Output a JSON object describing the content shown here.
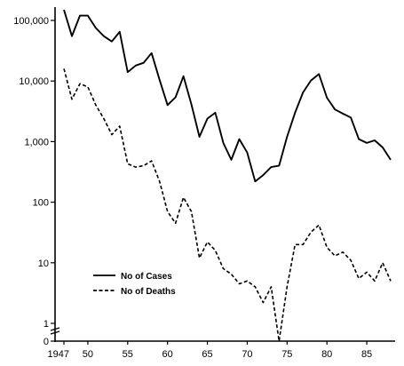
{
  "chart_data": {
    "type": "line",
    "title": "",
    "xlabel": "",
    "ylabel": "",
    "y_scale": "log",
    "ylim": [
      1,
      100000
    ],
    "xlim": [
      1947,
      1988
    ],
    "y_ticks": [
      {
        "value": 100000,
        "label": "100,000"
      },
      {
        "value": 10000,
        "label": "10,000"
      },
      {
        "value": 1000,
        "label": "1,000"
      },
      {
        "value": 100,
        "label": "100"
      },
      {
        "value": 10,
        "label": "10"
      },
      {
        "value": 1,
        "label": "1"
      }
    ],
    "y_zero_label": "0",
    "x_ticks": [
      {
        "value": 1947,
        "label": "1947"
      },
      {
        "value": 1950,
        "label": "50"
      },
      {
        "value": 1955,
        "label": "55"
      },
      {
        "value": 1960,
        "label": "60"
      },
      {
        "value": 1965,
        "label": "65"
      },
      {
        "value": 1970,
        "label": "70"
      },
      {
        "value": 1975,
        "label": "75"
      },
      {
        "value": 1980,
        "label": "80"
      },
      {
        "value": 1985,
        "label": "85"
      }
    ],
    "grid": false,
    "legend_position": "bottom-left",
    "series": [
      {
        "name": "No of Cases",
        "style": "solid",
        "x": [
          1947,
          1948,
          1949,
          1950,
          1951,
          1952,
          1953,
          1954,
          1955,
          1956,
          1957,
          1958,
          1959,
          1960,
          1961,
          1962,
          1963,
          1964,
          1965,
          1966,
          1967,
          1968,
          1969,
          1970,
          1971,
          1972,
          1973,
          1974,
          1975,
          1976,
          1977,
          1978,
          1979,
          1980,
          1981,
          1982,
          1983,
          1984,
          1985,
          1986,
          1987,
          1988
        ],
        "values": [
          150000,
          55000,
          120000,
          120000,
          75000,
          55000,
          45000,
          65000,
          14000,
          18000,
          20000,
          29000,
          10500,
          4000,
          5400,
          12000,
          4100,
          1200,
          2400,
          3000,
          950,
          500,
          1100,
          660,
          220,
          280,
          380,
          400,
          1200,
          3000,
          6500,
          10200,
          13000,
          5300,
          3400,
          2900,
          2500,
          1100,
          950,
          1050,
          800,
          500
        ]
      },
      {
        "name": "No of Deaths",
        "style": "dashed",
        "x": [
          1947,
          1948,
          1949,
          1950,
          1951,
          1952,
          1953,
          1954,
          1955,
          1956,
          1957,
          1958,
          1959,
          1960,
          1961,
          1962,
          1963,
          1964,
          1965,
          1966,
          1967,
          1968,
          1969,
          1970,
          1971,
          1972,
          1973,
          1974,
          1975,
          1976,
          1977,
          1978,
          1979,
          1980,
          1981,
          1982,
          1983,
          1984,
          1985,
          1986,
          1987,
          1988
        ],
        "values": [
          16000,
          5000,
          9000,
          8000,
          4000,
          2400,
          1300,
          1800,
          430,
          380,
          400,
          480,
          220,
          70,
          45,
          120,
          70,
          12,
          22,
          16,
          8,
          6.5,
          4.5,
          5,
          4,
          2.2,
          4,
          0,
          4,
          20,
          20,
          32,
          42,
          18,
          13,
          15,
          11,
          5.5,
          7,
          5,
          10,
          5
        ]
      }
    ]
  }
}
